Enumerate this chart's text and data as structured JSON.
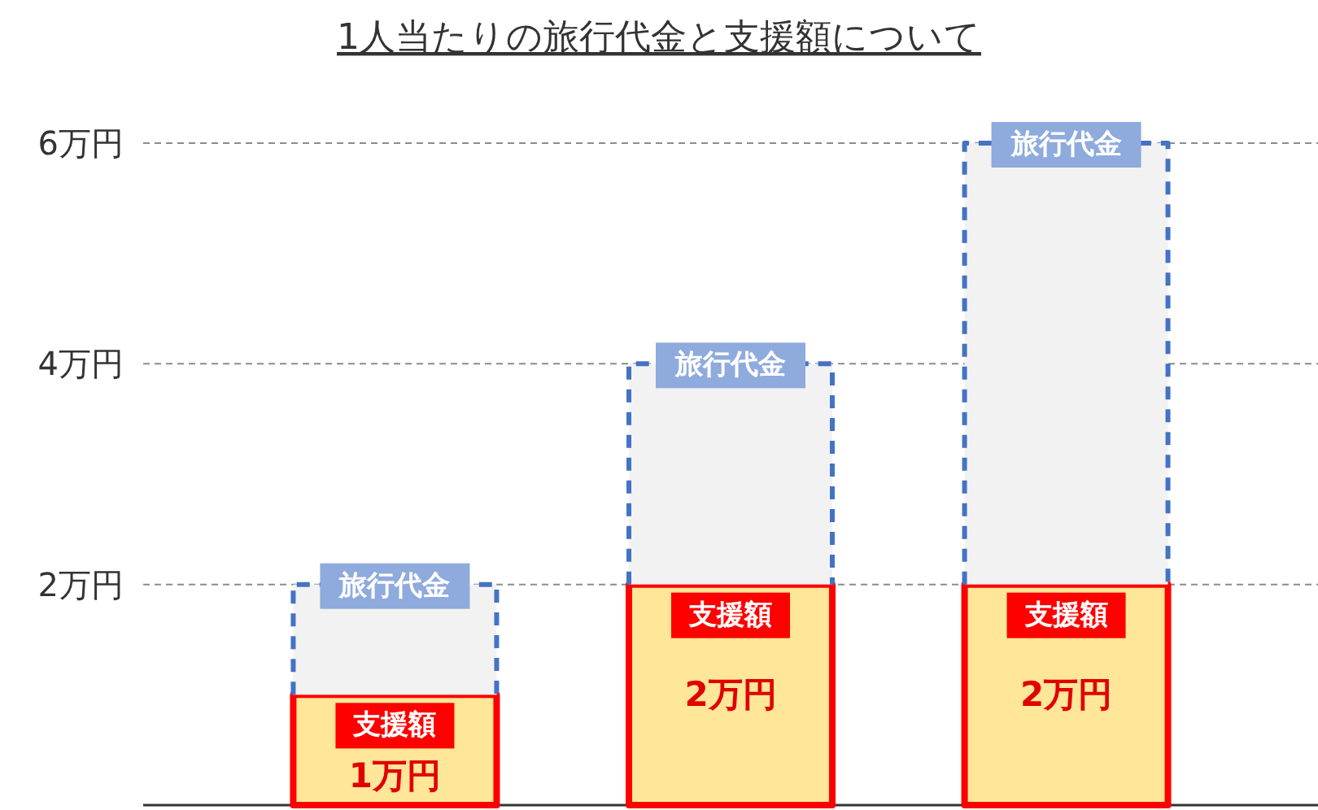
{
  "chart_data": {
    "type": "bar",
    "title": "1人当たりの旅行代金と支援額について",
    "stacked": true,
    "legend": false,
    "grid": "y",
    "categories": [
      null,
      null,
      null
    ],
    "ylim": [
      0,
      6
    ],
    "yticks": [
      {
        "value": 2,
        "label": "2万円"
      },
      {
        "value": 4,
        "label": "4万円"
      },
      {
        "value": 6,
        "label": "6万円"
      }
    ],
    "series": [
      {
        "name": "支援額",
        "color": "#ffe699",
        "line_style": "solid",
        "values": [
          1,
          2,
          2
        ],
        "value_labels": [
          "1万円",
          "2万円",
          "2万円"
        ]
      },
      {
        "name": "旅行代金",
        "color": "#f2f2f2",
        "line_style": "dashed",
        "values": [
          1,
          2,
          4
        ]
      }
    ]
  }
}
